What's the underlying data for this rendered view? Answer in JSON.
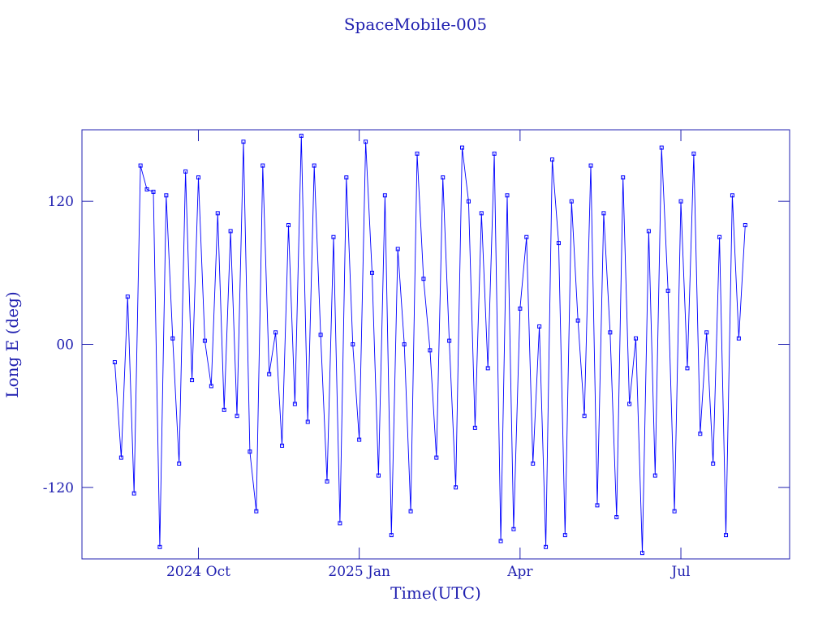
{
  "chart_data": {
    "type": "line",
    "title": "SpaceMobile-005",
    "xlabel": "Time(UTC)",
    "ylabel": "Long E (deg)",
    "x": [
      2024.62,
      2024.63,
      2024.64,
      2024.65,
      2024.66,
      2024.67,
      2024.68,
      2024.69,
      2024.7,
      2024.71,
      2024.72,
      2024.73,
      2024.74,
      2024.75,
      2024.76,
      2024.77,
      2024.78,
      2024.79,
      2024.8,
      2024.81,
      2024.82,
      2024.83,
      2024.84,
      2024.85,
      2024.86,
      2024.87,
      2024.88,
      2024.89,
      2024.9,
      2024.91,
      2024.92,
      2024.93,
      2024.94,
      2024.95,
      2024.96,
      2024.97,
      2024.98,
      2024.99,
      2025.0,
      2025.01,
      2025.02,
      2025.03,
      2025.04,
      2025.05,
      2025.06,
      2025.07,
      2025.08,
      2025.09,
      2025.1,
      2025.11,
      2025.12,
      2025.13,
      2025.14,
      2025.15,
      2025.16,
      2025.17,
      2025.18,
      2025.19,
      2025.2,
      2025.21,
      2025.22,
      2025.23,
      2025.24,
      2025.25,
      2025.26,
      2025.27,
      2025.28,
      2025.29,
      2025.3,
      2025.31,
      2025.32,
      2025.33,
      2025.34,
      2025.35,
      2025.36,
      2025.37,
      2025.38,
      2025.39,
      2025.4,
      2025.41,
      2025.42,
      2025.43,
      2025.44,
      2025.45,
      2025.46,
      2025.47,
      2025.48,
      2025.49,
      2025.5,
      2025.51,
      2025.52,
      2025.53,
      2025.54,
      2025.55,
      2025.56,
      2025.57,
      2025.58,
      2025.59,
      2025.6
    ],
    "series": [
      {
        "name": "SpaceMobile-005",
        "color": "#0000ff",
        "values": [
          -15,
          -95,
          40,
          -125,
          150,
          130,
          128,
          -170,
          125,
          5,
          -100,
          145,
          -30,
          140,
          3,
          -35,
          110,
          -55,
          95,
          -60,
          170,
          -90,
          -140,
          150,
          -25,
          10,
          -85,
          100,
          -50,
          175,
          -65,
          150,
          8,
          -115,
          90,
          -150,
          140,
          0,
          -80,
          170,
          60,
          -110,
          125,
          -160,
          80,
          0,
          -140,
          160,
          55,
          -5,
          -95,
          140,
          3,
          -120,
          165,
          120,
          -70,
          110,
          -20,
          160,
          -165,
          125,
          -155,
          30,
          90,
          -100,
          15,
          -170,
          155,
          85,
          -160,
          120,
          20,
          -60,
          150,
          -135,
          110,
          10,
          -145,
          140,
          -50,
          5,
          -175,
          95,
          -110,
          165,
          45,
          -140,
          120,
          -20,
          160,
          -75,
          10,
          -100,
          90,
          -160,
          125,
          5,
          100
        ]
      }
    ],
    "xlim": [
      2024.569,
      2025.669
    ],
    "xticks": [
      {
        "value": 2024.75,
        "label": "2024 Oct"
      },
      {
        "value": 2025.0,
        "label": "2025 Jan"
      },
      {
        "value": 2025.25,
        "label": "Apr"
      },
      {
        "value": 2025.5,
        "label": "Jul"
      }
    ],
    "ylim": [
      -180,
      180
    ],
    "yticks": [
      -120,
      {
        "value": 0,
        "label": "00"
      },
      120
    ]
  }
}
